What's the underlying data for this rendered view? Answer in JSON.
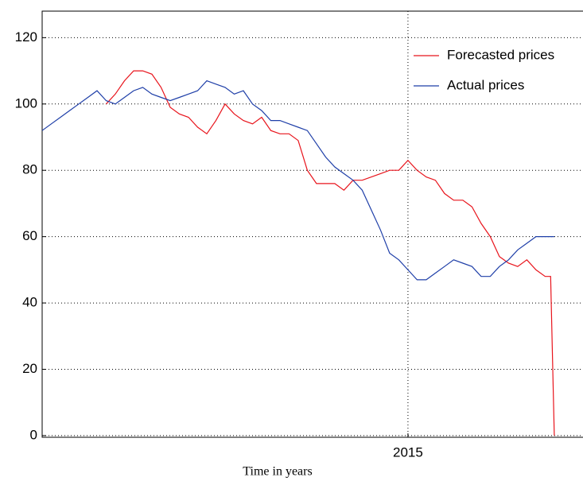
{
  "chart_data": {
    "type": "line",
    "xlabel": "Time in years",
    "xlim": [
      2013,
      2015.957
    ],
    "xticks": [
      2015
    ],
    "ylim": [
      -0.5,
      128
    ],
    "yticks": [
      0,
      20,
      40,
      60,
      80,
      100,
      120
    ],
    "grid": true,
    "legend": "upper right",
    "series": [
      {
        "name": "Forecasted prices",
        "color": "#e8141c",
        "x": [
          2013.35,
          2013.4,
          2013.45,
          2013.5,
          2013.55,
          2013.6,
          2013.65,
          2013.7,
          2013.75,
          2013.8,
          2013.85,
          2013.9,
          2013.95,
          2014.0,
          2014.05,
          2014.1,
          2014.15,
          2014.2,
          2014.25,
          2014.3,
          2014.35,
          2014.4,
          2014.45,
          2014.5,
          2014.55,
          2014.6,
          2014.65,
          2014.7,
          2014.75,
          2014.8,
          2014.85,
          2014.9,
          2014.95,
          2015.0,
          2015.05,
          2015.1,
          2015.15,
          2015.2,
          2015.25,
          2015.3,
          2015.35,
          2015.4,
          2015.45,
          2015.5,
          2015.55,
          2015.6,
          2015.65,
          2015.7,
          2015.75,
          2015.78,
          2015.8
        ],
        "values": [
          100,
          103,
          107,
          110,
          110,
          109,
          105,
          99,
          97,
          96,
          93,
          91,
          95,
          100,
          97,
          95,
          94,
          96,
          92,
          91,
          91,
          89,
          80,
          76,
          76,
          76,
          74,
          77,
          77,
          78,
          79,
          80,
          80,
          83,
          80,
          78,
          77,
          73,
          71,
          71,
          69,
          64,
          60,
          54,
          52,
          51,
          53,
          50,
          48,
          48,
          0
        ]
      },
      {
        "name": "Actual prices",
        "color": "#1f3fa8",
        "x": [
          2013.0,
          2013.05,
          2013.1,
          2013.15,
          2013.2,
          2013.25,
          2013.3,
          2013.35,
          2013.4,
          2013.45,
          2013.5,
          2013.55,
          2013.6,
          2013.65,
          2013.7,
          2013.75,
          2013.8,
          2013.85,
          2013.9,
          2013.95,
          2014.0,
          2014.05,
          2014.1,
          2014.15,
          2014.2,
          2014.25,
          2014.3,
          2014.35,
          2014.4,
          2014.45,
          2014.5,
          2014.55,
          2014.6,
          2014.65,
          2014.7,
          2014.75,
          2014.8,
          2014.85,
          2014.9,
          2014.95,
          2015.0,
          2015.05,
          2015.1,
          2015.15,
          2015.2,
          2015.25,
          2015.3,
          2015.35,
          2015.4,
          2015.45,
          2015.5,
          2015.55,
          2015.6,
          2015.65,
          2015.7,
          2015.75,
          2015.8
        ],
        "values": [
          92,
          94,
          96,
          98,
          100,
          102,
          104,
          101,
          100,
          102,
          104,
          105,
          103,
          102,
          101,
          102,
          103,
          104,
          107,
          106,
          105,
          103,
          104,
          100,
          98,
          95,
          95,
          94,
          93,
          92,
          88,
          84,
          81,
          79,
          77,
          74,
          68,
          62,
          55,
          53,
          50,
          47,
          47,
          49,
          51,
          53,
          52,
          51,
          48,
          48,
          51,
          53,
          56,
          58,
          60,
          60,
          60
        ]
      }
    ]
  }
}
